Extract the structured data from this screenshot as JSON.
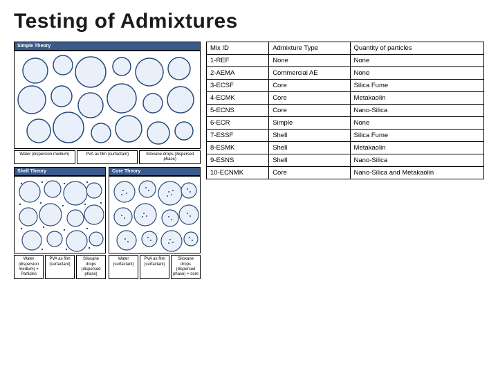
{
  "title": "Testing of Admixtures",
  "title_color": "#1a1a1a",
  "diagrams": {
    "simple": {
      "header": "Simple Theory",
      "labels": [
        "Water (dispersion medium)",
        "PVA as film (surfactant)",
        "Siloxane drops (dispersed phase)"
      ]
    },
    "shell": {
      "header": "Shell Theory",
      "labels": [
        "Water (dispersion medium) + Particles",
        "PVA as film (surfactant)",
        "Siloxane drops (dispersed phase)"
      ]
    },
    "core": {
      "header": "Core Theory",
      "labels": [
        "Water (surfactant)",
        "PVA as film (surfactant)",
        "Siloxane drops (dispersed phase) + core"
      ]
    }
  },
  "table": {
    "columns": [
      "Mix ID",
      "Admixture Type",
      "Quantity of particles"
    ],
    "rows": [
      [
        "1-REF",
        "None",
        "None"
      ],
      [
        "2-AEMA",
        "Commercial AE",
        "None"
      ],
      [
        "3-ECSF",
        "Core",
        "Silica Fume"
      ],
      [
        "4-ECMK",
        "Core",
        "Metakaolin"
      ],
      [
        "5-ECNS",
        "Core",
        "Nano-Silica"
      ],
      [
        "6-ECR",
        "Simple",
        "None"
      ],
      [
        "7-ESSF",
        "Shell",
        "Silica Fume"
      ],
      [
        "8-ESMK",
        "Shell",
        "Metakaolin"
      ],
      [
        "9-ESNS",
        "Shell",
        "Nano-Silica"
      ],
      [
        "10-ECNMK",
        "Core",
        "Nano-Silica and Metakaolin"
      ]
    ]
  },
  "style": {
    "header_bg": "#3a5a8a",
    "circle_stroke": "#2a4a7a",
    "circle_fill": "#eaf0fa",
    "dot_fill": "#2a4a7a"
  }
}
